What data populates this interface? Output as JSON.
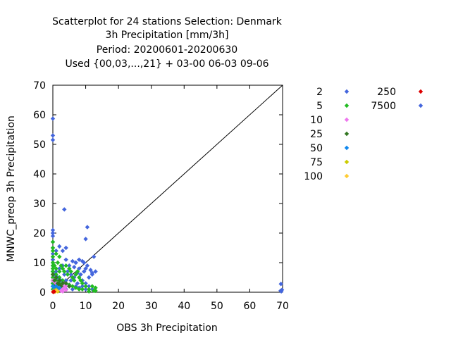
{
  "chart_data": {
    "type": "scatter",
    "title_lines": [
      "Scatterplot for   24 stations Selection: Denmark",
      "3h Precipitation [mm/3h]",
      "Period: 20200601-20200630",
      "Used {00,03,...,21} + 03-00 06-03 09-06"
    ],
    "xlabel": "OBS 3h Precipitation",
    "ylabel": "MNWC_preop 3h Precipitation",
    "xlim": [
      0,
      70
    ],
    "ylim": [
      0,
      70
    ],
    "xticks": [
      0,
      10,
      20,
      30,
      40,
      50,
      60,
      70
    ],
    "yticks": [
      0,
      10,
      20,
      30,
      40,
      50,
      60,
      70
    ],
    "diagonal": true,
    "grid": false,
    "legend_position": "right",
    "legend": [
      {
        "label": "2",
        "color": "#4466dd"
      },
      {
        "label": "5",
        "color": "#22bb22"
      },
      {
        "label": "10",
        "color": "#ee77ee"
      },
      {
        "label": "25",
        "color": "#337722"
      },
      {
        "label": "50",
        "color": "#1188ee"
      },
      {
        "label": "75",
        "color": "#cccc00"
      },
      {
        "label": "100",
        "color": "#ffcc33"
      },
      {
        "label": "250",
        "color": "#dd0000"
      },
      {
        "label": "7500",
        "color": "#4466dd"
      }
    ],
    "series": [
      {
        "color": "#4466dd",
        "points": [
          [
            0,
            58.7
          ],
          [
            0,
            53
          ],
          [
            0,
            51.5
          ],
          [
            0,
            21
          ],
          [
            0,
            20
          ],
          [
            0,
            19
          ],
          [
            0,
            17
          ],
          [
            0,
            15
          ],
          [
            0,
            13
          ],
          [
            0,
            11
          ],
          [
            0,
            9
          ],
          [
            0,
            7
          ],
          [
            0,
            5
          ],
          [
            0,
            3
          ],
          [
            0,
            2
          ],
          [
            3.5,
            28
          ],
          [
            10.5,
            22
          ],
          [
            4,
            15
          ],
          [
            1,
            14
          ],
          [
            2,
            15.5
          ],
          [
            3,
            14
          ],
          [
            12.5,
            12
          ],
          [
            8,
            11
          ],
          [
            9,
            10.5
          ],
          [
            9.5,
            10
          ],
          [
            10,
            8
          ],
          [
            7,
            10
          ],
          [
            6,
            10.5
          ],
          [
            5,
            9
          ],
          [
            4,
            11
          ],
          [
            3,
            9
          ],
          [
            2,
            8
          ],
          [
            1,
            7
          ],
          [
            0.5,
            6
          ],
          [
            1.5,
            5
          ],
          [
            2.5,
            4
          ],
          [
            3.5,
            6
          ],
          [
            4.5,
            7
          ],
          [
            5.5,
            4
          ],
          [
            6.5,
            5
          ],
          [
            7.5,
            3
          ],
          [
            8.5,
            6
          ],
          [
            9,
            4
          ],
          [
            10,
            3
          ],
          [
            11,
            5
          ],
          [
            12,
            6
          ],
          [
            13,
            7
          ],
          [
            11,
            2
          ],
          [
            12,
            1
          ],
          [
            10,
            1
          ],
          [
            9,
            2
          ],
          [
            8,
            1.5
          ],
          [
            7,
            2
          ],
          [
            6,
            1
          ],
          [
            5,
            2
          ],
          [
            4,
            1
          ],
          [
            3,
            1.5
          ],
          [
            2,
            2
          ],
          [
            1,
            1
          ],
          [
            9.5,
            7
          ],
          [
            8,
            8
          ],
          [
            10.5,
            9
          ],
          [
            11.5,
            7.5
          ],
          [
            7.5,
            6.5
          ],
          [
            6.5,
            8.5
          ],
          [
            5.5,
            6
          ],
          [
            4,
            4
          ],
          [
            10,
            18
          ],
          [
            7,
            10
          ],
          [
            12,
            6.5
          ],
          [
            69.5,
            2.8
          ],
          [
            69.8,
            0.8
          ],
          [
            69.6,
            0.3
          ],
          [
            69.4,
            0.5
          ]
        ]
      },
      {
        "color": "#22bb22",
        "points": [
          [
            0,
            17
          ],
          [
            0,
            15
          ],
          [
            0,
            14
          ],
          [
            0,
            12
          ],
          [
            0,
            10
          ],
          [
            0,
            9
          ],
          [
            0,
            8
          ],
          [
            0,
            7
          ],
          [
            0,
            6
          ],
          [
            0,
            5
          ],
          [
            0,
            4
          ],
          [
            0,
            3
          ],
          [
            0,
            2
          ],
          [
            0,
            1
          ],
          [
            1,
            13
          ],
          [
            2,
            12
          ],
          [
            1.5,
            10
          ],
          [
            2.5,
            9
          ],
          [
            3,
            8
          ],
          [
            3.5,
            7
          ],
          [
            4,
            9
          ],
          [
            4.5,
            6
          ],
          [
            5,
            8
          ],
          [
            5.5,
            7
          ],
          [
            6,
            5
          ],
          [
            6.5,
            4
          ],
          [
            7,
            6
          ],
          [
            7.5,
            7
          ],
          [
            8,
            5
          ],
          [
            8.5,
            4
          ],
          [
            9,
            3
          ],
          [
            10,
            2
          ],
          [
            11,
            1
          ],
          [
            12,
            2
          ],
          [
            13,
            1.5
          ],
          [
            13,
            0.5
          ],
          [
            12.5,
            0.5
          ],
          [
            11,
            0.3
          ],
          [
            1,
            4
          ],
          [
            2,
            3
          ],
          [
            3,
            2
          ],
          [
            4,
            3
          ],
          [
            5,
            2.5
          ],
          [
            6,
            2
          ],
          [
            7,
            1.5
          ],
          [
            8,
            1
          ],
          [
            9,
            1
          ],
          [
            1,
            6
          ],
          [
            2,
            5
          ],
          [
            3,
            4
          ],
          [
            1,
            8
          ],
          [
            2,
            7
          ],
          [
            0.5,
            9
          ]
        ]
      },
      {
        "color": "#ee77ee",
        "points": [
          [
            0,
            4
          ],
          [
            0.5,
            3.5
          ],
          [
            1,
            3
          ],
          [
            1.5,
            2.5
          ],
          [
            2,
            2
          ],
          [
            2.5,
            1.5
          ],
          [
            3,
            1
          ],
          [
            3.5,
            1.5
          ],
          [
            4,
            2
          ],
          [
            1,
            1
          ],
          [
            2,
            1
          ],
          [
            3,
            2.5
          ],
          [
            1.5,
            1.5
          ],
          [
            0.5,
            1
          ],
          [
            2.5,
            0.5
          ],
          [
            4,
            0.8
          ],
          [
            3,
            0.3
          ]
        ]
      },
      {
        "color": "#337722",
        "points": [
          [
            0,
            6
          ],
          [
            0.5,
            4
          ],
          [
            1,
            5
          ],
          [
            1.5,
            3
          ],
          [
            2,
            4
          ],
          [
            2.5,
            2
          ],
          [
            3,
            3
          ],
          [
            0.5,
            2
          ],
          [
            1,
            1.5
          ],
          [
            2,
            2.5
          ],
          [
            4,
            3
          ],
          [
            5,
            2
          ]
        ]
      },
      {
        "color": "#1188ee",
        "points": [
          [
            0,
            2
          ],
          [
            0.5,
            1
          ],
          [
            1,
            2
          ],
          [
            1.5,
            1
          ],
          [
            2,
            1.5
          ]
        ]
      },
      {
        "color": "#cccc00",
        "points": [
          [
            0.5,
            0.5
          ],
          [
            1,
            0.8
          ],
          [
            1.5,
            0.3
          ],
          [
            0.3,
            0.2
          ]
        ]
      },
      {
        "color": "#ffcc33",
        "points": [
          [
            0.2,
            0.3
          ],
          [
            0.8,
            0.2
          ],
          [
            1.2,
            0.5
          ]
        ]
      },
      {
        "color": "#dd0000",
        "points": [
          [
            0.1,
            0.1
          ],
          [
            0.4,
            0.2
          ]
        ]
      }
    ]
  }
}
